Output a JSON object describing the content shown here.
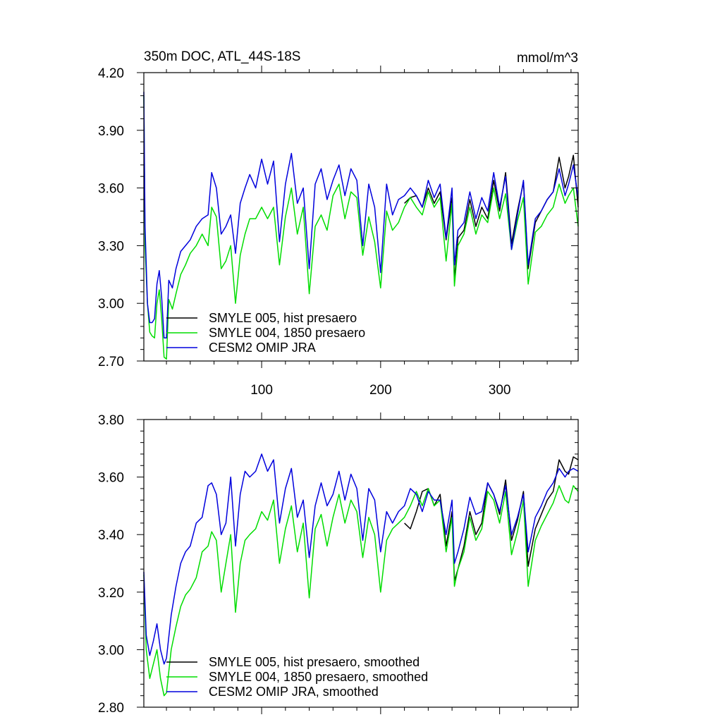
{
  "chart_data": [
    {
      "type": "line",
      "title": "350m DOC, ATL_44S-18S",
      "units": "mmol/m^3",
      "xlim": [
        1,
        366
      ],
      "ylim": [
        2.7,
        4.2
      ],
      "yticks": [
        2.7,
        3.0,
        3.3,
        3.6,
        3.9,
        4.2
      ],
      "ytick_labels": [
        "2.70",
        "3.00",
        "3.30",
        "3.60",
        "3.90",
        "4.20"
      ],
      "xticks": [
        100,
        200,
        300
      ],
      "xtick_labels": [
        "100",
        "200",
        "300"
      ],
      "grid": false,
      "legend_position": "bottom-left",
      "series": [
        {
          "name": "SMYLE 005, hist presaero",
          "color": "#000000",
          "x": [
            220,
            225,
            230,
            235,
            240,
            245,
            250,
            255,
            260,
            262,
            265,
            270,
            275,
            280,
            285,
            290,
            295,
            300,
            305,
            310,
            315,
            320,
            324,
            330,
            335,
            340,
            345,
            350,
            355,
            358,
            362,
            366
          ],
          "y": [
            3.52,
            3.55,
            3.56,
            3.5,
            3.6,
            3.52,
            3.58,
            3.33,
            3.55,
            3.12,
            3.34,
            3.38,
            3.54,
            3.4,
            3.5,
            3.44,
            3.64,
            3.48,
            3.68,
            3.31,
            3.48,
            3.63,
            3.18,
            3.42,
            3.48,
            3.54,
            3.58,
            3.76,
            3.6,
            3.66,
            3.77,
            3.5
          ]
        },
        {
          "name": "SMYLE 004, 1850 presaero",
          "color": "#00dd00",
          "x": [
            1,
            2,
            4,
            6,
            8,
            10,
            12,
            14,
            16,
            18,
            20,
            22,
            25,
            28,
            32,
            36,
            40,
            45,
            50,
            55,
            58,
            62,
            66,
            70,
            74,
            78,
            82,
            86,
            90,
            95,
            100,
            105,
            110,
            115,
            120,
            125,
            130,
            135,
            140,
            145,
            150,
            155,
            160,
            165,
            170,
            175,
            180,
            185,
            190,
            195,
            200,
            205,
            210,
            215,
            220,
            225,
            230,
            235,
            240,
            245,
            250,
            255,
            260,
            262,
            265,
            270,
            275,
            280,
            285,
            290,
            295,
            300,
            305,
            310,
            315,
            320,
            324,
            330,
            335,
            340,
            345,
            350,
            355,
            358,
            362,
            366
          ],
          "y": [
            4.08,
            3.3,
            3.0,
            2.85,
            2.83,
            2.82,
            3.0,
            3.07,
            2.92,
            2.72,
            2.71,
            3.02,
            2.97,
            3.05,
            3.15,
            3.2,
            3.26,
            3.3,
            3.36,
            3.3,
            3.5,
            3.45,
            3.18,
            3.22,
            3.3,
            3.0,
            3.25,
            3.36,
            3.44,
            3.44,
            3.5,
            3.44,
            3.5,
            3.2,
            3.45,
            3.6,
            3.36,
            3.5,
            3.05,
            3.4,
            3.46,
            3.38,
            3.56,
            3.62,
            3.44,
            3.58,
            3.55,
            3.25,
            3.45,
            3.32,
            3.08,
            3.48,
            3.38,
            3.42,
            3.5,
            3.55,
            3.5,
            3.46,
            3.58,
            3.5,
            3.55,
            3.22,
            3.52,
            3.09,
            3.3,
            3.36,
            3.5,
            3.36,
            3.46,
            3.42,
            3.6,
            3.44,
            3.57,
            3.28,
            3.43,
            3.55,
            3.1,
            3.37,
            3.4,
            3.46,
            3.5,
            3.62,
            3.52,
            3.56,
            3.6,
            3.4
          ]
        },
        {
          "name": "CESM2 OMIP JRA",
          "color": "#0000dd",
          "x": [
            1,
            2,
            4,
            6,
            8,
            10,
            12,
            14,
            16,
            18,
            20,
            22,
            25,
            28,
            32,
            36,
            40,
            45,
            50,
            55,
            58,
            62,
            66,
            70,
            74,
            78,
            82,
            86,
            90,
            95,
            100,
            105,
            110,
            115,
            120,
            125,
            130,
            135,
            140,
            145,
            150,
            155,
            160,
            165,
            170,
            175,
            180,
            185,
            190,
            195,
            200,
            205,
            210,
            215,
            220,
            225,
            230,
            235,
            240,
            245,
            250,
            255,
            260,
            262,
            265,
            270,
            275,
            280,
            285,
            290,
            295,
            300,
            305,
            310,
            315,
            320,
            324,
            330,
            335,
            340,
            345,
            350,
            355,
            358,
            362,
            366
          ],
          "y": [
            4.1,
            3.4,
            3.0,
            2.9,
            2.9,
            2.92,
            3.1,
            3.17,
            3.03,
            2.82,
            2.82,
            3.12,
            3.08,
            3.18,
            3.27,
            3.3,
            3.33,
            3.4,
            3.44,
            3.46,
            3.68,
            3.6,
            3.36,
            3.4,
            3.46,
            3.26,
            3.52,
            3.6,
            3.67,
            3.6,
            3.75,
            3.62,
            3.74,
            3.32,
            3.62,
            3.78,
            3.52,
            3.6,
            3.18,
            3.62,
            3.7,
            3.54,
            3.64,
            3.72,
            3.56,
            3.7,
            3.64,
            3.3,
            3.62,
            3.5,
            3.16,
            3.62,
            3.46,
            3.54,
            3.56,
            3.6,
            3.56,
            3.5,
            3.64,
            3.55,
            3.62,
            3.34,
            3.6,
            3.2,
            3.38,
            3.42,
            3.58,
            3.44,
            3.55,
            3.48,
            3.68,
            3.5,
            3.66,
            3.28,
            3.46,
            3.64,
            3.2,
            3.44,
            3.48,
            3.54,
            3.58,
            3.7,
            3.56,
            3.62,
            3.72,
            3.55
          ]
        }
      ]
    },
    {
      "type": "line",
      "title": "",
      "xlim": [
        1,
        366
      ],
      "ylim": [
        2.8,
        3.8
      ],
      "yticks": [
        2.8,
        3.0,
        3.2,
        3.4,
        3.6,
        3.8
      ],
      "ytick_labels": [
        "2.80",
        "3.00",
        "3.20",
        "3.40",
        "3.60",
        "3.80"
      ],
      "xticks": [
        100,
        200,
        300
      ],
      "xtick_labels": [
        "",
        "",
        ""
      ],
      "grid": false,
      "legend_position": "bottom-left",
      "series": [
        {
          "name": "SMYLE 005, hist presaero, smoothed",
          "color": "#000000",
          "x": [
            220,
            225,
            230,
            235,
            240,
            245,
            250,
            255,
            260,
            262,
            265,
            270,
            275,
            280,
            285,
            290,
            295,
            300,
            305,
            310,
            315,
            320,
            324,
            330,
            335,
            340,
            345,
            350,
            355,
            358,
            362,
            366
          ],
          "y": [
            3.44,
            3.42,
            3.48,
            3.55,
            3.56,
            3.5,
            3.54,
            3.36,
            3.48,
            3.24,
            3.28,
            3.36,
            3.48,
            3.4,
            3.44,
            3.58,
            3.54,
            3.47,
            3.59,
            3.38,
            3.45,
            3.55,
            3.29,
            3.42,
            3.47,
            3.52,
            3.55,
            3.66,
            3.62,
            3.61,
            3.67,
            3.66
          ]
        },
        {
          "name": "SMYLE 004, 1850 presaero, smoothed",
          "color": "#00dd00",
          "x": [
            1,
            3,
            6,
            9,
            12,
            15,
            18,
            20,
            24,
            28,
            32,
            36,
            40,
            45,
            50,
            55,
            58,
            62,
            66,
            70,
            74,
            78,
            82,
            86,
            90,
            95,
            100,
            105,
            110,
            115,
            120,
            125,
            130,
            135,
            140,
            145,
            150,
            155,
            160,
            165,
            170,
            175,
            180,
            185,
            190,
            195,
            200,
            205,
            210,
            215,
            220,
            225,
            230,
            235,
            240,
            245,
            250,
            255,
            260,
            262,
            265,
            270,
            275,
            280,
            285,
            290,
            295,
            300,
            305,
            310,
            315,
            320,
            324,
            330,
            335,
            340,
            345,
            350,
            355,
            358,
            362,
            366
          ],
          "y": [
            3.26,
            3.0,
            2.9,
            2.95,
            3.0,
            2.9,
            2.84,
            2.85,
            3.0,
            3.08,
            3.15,
            3.19,
            3.21,
            3.25,
            3.34,
            3.36,
            3.41,
            3.38,
            3.2,
            3.3,
            3.4,
            3.13,
            3.3,
            3.38,
            3.4,
            3.42,
            3.48,
            3.45,
            3.52,
            3.3,
            3.42,
            3.5,
            3.34,
            3.44,
            3.18,
            3.42,
            3.47,
            3.36,
            3.46,
            3.54,
            3.44,
            3.52,
            3.48,
            3.32,
            3.46,
            3.4,
            3.2,
            3.38,
            3.42,
            3.44,
            3.46,
            3.5,
            3.55,
            3.5,
            3.56,
            3.5,
            3.52,
            3.34,
            3.46,
            3.22,
            3.28,
            3.34,
            3.46,
            3.38,
            3.42,
            3.55,
            3.52,
            3.44,
            3.55,
            3.33,
            3.41,
            3.52,
            3.22,
            3.38,
            3.43,
            3.47,
            3.51,
            3.57,
            3.52,
            3.51,
            3.57,
            3.55
          ]
        },
        {
          "name": "CESM2 OMIP JRA, smoothed",
          "color": "#0000dd",
          "x": [
            1,
            3,
            6,
            9,
            12,
            15,
            18,
            20,
            24,
            28,
            32,
            36,
            40,
            45,
            50,
            55,
            58,
            62,
            66,
            70,
            74,
            78,
            82,
            86,
            90,
            95,
            100,
            105,
            110,
            115,
            120,
            125,
            130,
            135,
            140,
            145,
            150,
            155,
            160,
            165,
            170,
            175,
            180,
            185,
            190,
            195,
            200,
            205,
            210,
            215,
            220,
            225,
            230,
            235,
            240,
            245,
            250,
            255,
            260,
            262,
            265,
            270,
            275,
            280,
            285,
            290,
            295,
            300,
            305,
            310,
            315,
            320,
            324,
            330,
            335,
            340,
            345,
            350,
            355,
            358,
            362,
            366
          ],
          "y": [
            3.27,
            3.05,
            2.98,
            3.03,
            3.09,
            3.0,
            2.95,
            2.97,
            3.12,
            3.22,
            3.3,
            3.34,
            3.36,
            3.44,
            3.46,
            3.57,
            3.58,
            3.54,
            3.4,
            3.44,
            3.6,
            3.36,
            3.54,
            3.62,
            3.6,
            3.62,
            3.68,
            3.62,
            3.66,
            3.44,
            3.56,
            3.63,
            3.46,
            3.52,
            3.32,
            3.5,
            3.58,
            3.5,
            3.54,
            3.62,
            3.52,
            3.61,
            3.56,
            3.38,
            3.56,
            3.52,
            3.34,
            3.48,
            3.44,
            3.48,
            3.5,
            3.56,
            3.54,
            3.48,
            3.55,
            3.52,
            3.52,
            3.4,
            3.52,
            3.3,
            3.34,
            3.42,
            3.53,
            3.47,
            3.48,
            3.58,
            3.54,
            3.48,
            3.57,
            3.4,
            3.46,
            3.54,
            3.34,
            3.46,
            3.5,
            3.55,
            3.58,
            3.63,
            3.6,
            3.62,
            3.63,
            3.62
          ]
        }
      ]
    }
  ]
}
